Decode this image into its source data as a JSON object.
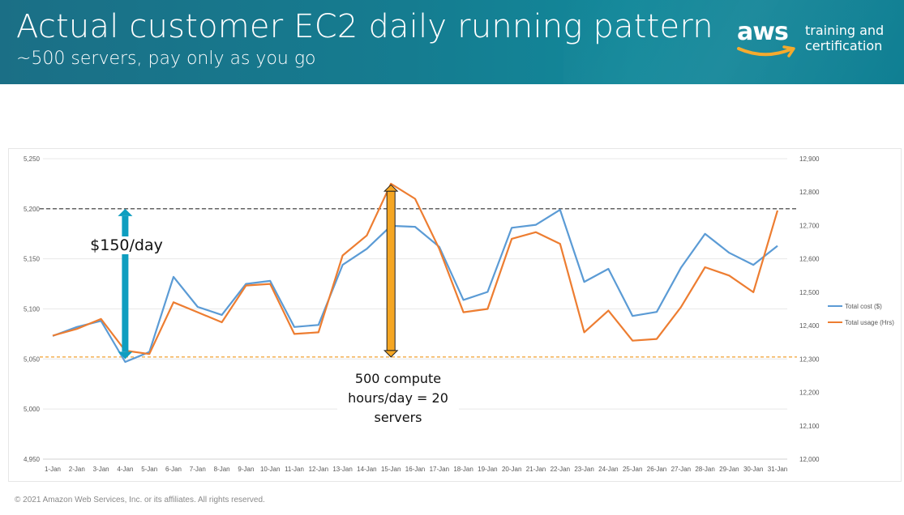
{
  "slide": {
    "title": "Actual customer EC2 daily running pattern",
    "subtitle": "~500 servers, pay only as you go",
    "logo_wordmark": "aws",
    "logo_line1": "training and",
    "logo_line2": "certification",
    "footer": "© 2021 Amazon Web Services, Inc. or its affiliates. All rights reserved.",
    "annotation_cost": "$150/day",
    "annotation_hours_1": "500 compute",
    "annotation_hours_2": "hours/day = 20",
    "annotation_hours_3": "servers"
  },
  "colors": {
    "header": "#157c90",
    "cost_series": "#5b9bd5",
    "usage_series": "#ed7d31",
    "cost_arrow": "#0e9ec0",
    "hours_arrow": "#f5a623",
    "reference_dark": "#333333",
    "reference_orange": "#f0a030"
  },
  "chart_data": {
    "type": "line",
    "categories": [
      "1-Jan",
      "2-Jan",
      "3-Jan",
      "4-Jan",
      "5-Jan",
      "6-Jan",
      "7-Jan",
      "8-Jan",
      "9-Jan",
      "10-Jan",
      "11-Jan",
      "12-Jan",
      "13-Jan",
      "14-Jan",
      "15-Jan",
      "16-Jan",
      "17-Jan",
      "18-Jan",
      "19-Jan",
      "20-Jan",
      "21-Jan",
      "22-Jan",
      "23-Jan",
      "24-Jan",
      "25-Jan",
      "26-Jan",
      "27-Jan",
      "28-Jan",
      "29-Jan",
      "30-Jan",
      "31-Jan"
    ],
    "y_left": {
      "ylim": [
        4950,
        5250
      ],
      "ticks": [
        "5,250",
        "5,200",
        "5,150",
        "5,100",
        "5,050",
        "5,000",
        "4,950"
      ]
    },
    "y_right": {
      "ylim": [
        12000,
        12900
      ],
      "ticks": [
        "12,900",
        "12,800",
        "12,700",
        "12,600",
        "12,500",
        "12,400",
        "12,300",
        "12,200",
        "12,100",
        "12,000"
      ]
    },
    "series": [
      {
        "name": "Total cost ($)",
        "axis": "left",
        "values": [
          5073,
          5082,
          5088,
          5047,
          5057,
          5132,
          5102,
          5094,
          5125,
          5128,
          5082,
          5084,
          5144,
          5160,
          5183,
          5182,
          5162,
          5109,
          5117,
          5181,
          5184,
          5199,
          5127,
          5140,
          5093,
          5097,
          5141,
          5175,
          5156,
          5144,
          5163
        ]
      },
      {
        "name": "Total usage (Hrs)",
        "axis": "right",
        "values": [
          12370,
          12390,
          12420,
          12325,
          12315,
          12470,
          12440,
          12410,
          12520,
          12525,
          12375,
          12380,
          12610,
          12670,
          12825,
          12780,
          12630,
          12440,
          12450,
          12660,
          12680,
          12645,
          12380,
          12445,
          12355,
          12360,
          12455,
          12575,
          12550,
          12500,
          12745
        ]
      }
    ],
    "reference_lines": [
      {
        "axis": "left",
        "value": 5200,
        "style": "dashed-dark"
      },
      {
        "axis": "left",
        "value": 5052,
        "style": "dashed-orange"
      }
    ],
    "arrows": [
      {
        "label": "$150/day",
        "category": "4-Jan",
        "axis": "left",
        "from": 5050,
        "to": 5200
      },
      {
        "label": "500 compute hours/day = 20 servers",
        "category": "15-Jan",
        "axis": "left",
        "from": 5052,
        "to": 5224
      }
    ],
    "legend": "right",
    "grid": true
  }
}
